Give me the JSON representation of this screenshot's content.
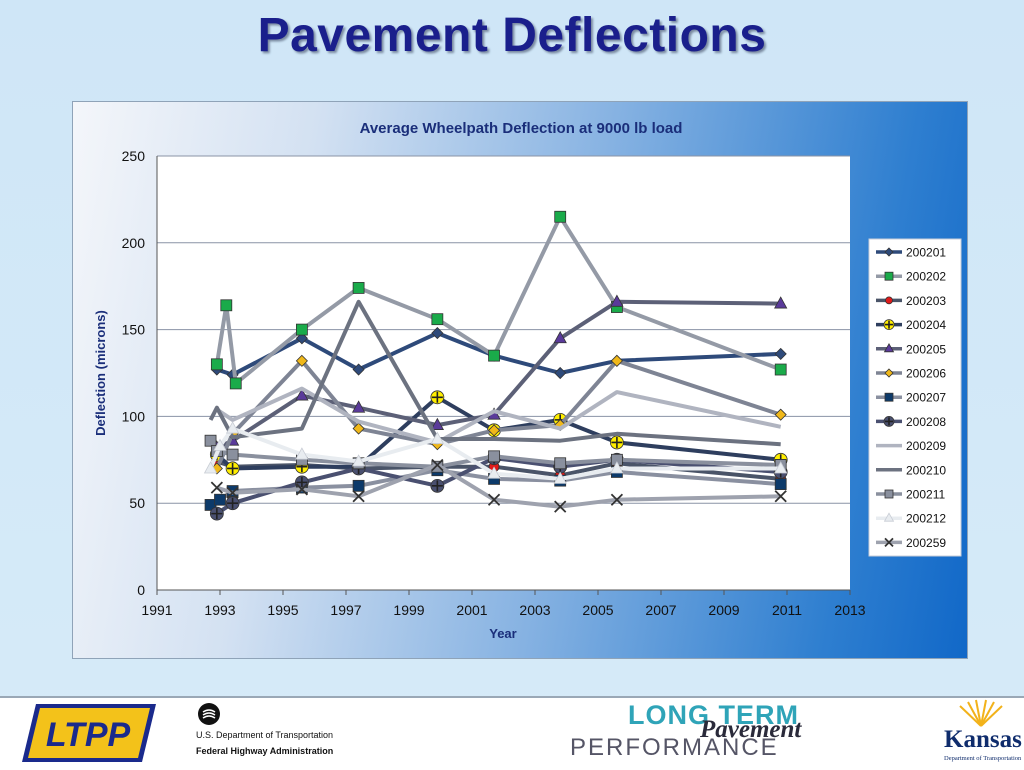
{
  "slide": {
    "title": "Pavement Deflections"
  },
  "footer": {
    "ltpp_logo": "LTPP",
    "dot_line1": "U.S. Department of Transportation",
    "dot_line2": "Federal Highway Administration",
    "lt_line1": "LONG TERM",
    "lt_line2": "Pavement",
    "lt_line3": "PERFORMANCE",
    "kansas_name": "Kansas",
    "kansas_sub": "Department of Transportation"
  },
  "chart_data": {
    "type": "line",
    "title": "Average Wheelpath Deflection at 9000 lb load",
    "xlabel": "Year",
    "ylabel": "Deflection (microns)",
    "xlim": [
      1991,
      2013
    ],
    "ylim": [
      0,
      250
    ],
    "xticks": [
      "1991",
      "1993",
      "1995",
      "1997",
      "1999",
      "2001",
      "2003",
      "2005",
      "2007",
      "2009",
      "2011",
      "2013"
    ],
    "yticks": [
      "0",
      "50",
      "100",
      "150",
      "200",
      "250"
    ],
    "grid": "horizontal",
    "legend_position": "right",
    "series": [
      {
        "name": "200201",
        "color": "#2e4a7a",
        "marker": "diamond",
        "points": [
          [
            1992.9,
            127
          ],
          [
            1993.4,
            124
          ],
          [
            1995.6,
            145
          ],
          [
            1997.4,
            127
          ],
          [
            1999.9,
            148
          ],
          [
            2001.7,
            135
          ],
          [
            2003.8,
            125
          ],
          [
            2005.6,
            132
          ],
          [
            2010.8,
            136
          ]
        ]
      },
      {
        "name": "200202",
        "color": "#949aa6",
        "marker": "square",
        "markerColor": "#1aab4a",
        "points": [
          [
            1992.9,
            130
          ],
          [
            1993.2,
            164
          ],
          [
            1993.5,
            119
          ],
          [
            1995.6,
            150
          ],
          [
            1997.4,
            174
          ],
          [
            1999.9,
            156
          ],
          [
            2001.7,
            135
          ],
          [
            2003.8,
            215
          ],
          [
            2005.6,
            163
          ],
          [
            2010.8,
            127
          ]
        ]
      },
      {
        "name": "200203",
        "color": "#4a5468",
        "marker": "circle",
        "markerColor": "#e01a1a",
        "points": [
          [
            1992.9,
            74
          ],
          [
            1993.4,
            71
          ],
          [
            1995.6,
            72
          ],
          [
            1997.4,
            70
          ],
          [
            1999.9,
            71
          ],
          [
            2001.7,
            71
          ],
          [
            2003.8,
            66
          ],
          [
            2005.6,
            73
          ],
          [
            2010.8,
            64
          ]
        ]
      },
      {
        "name": "200204",
        "color": "#2e3e5e",
        "marker": "plus",
        "markerColor": "#ffee00",
        "points": [
          [
            1992.9,
            78
          ],
          [
            1993.4,
            70
          ],
          [
            1995.6,
            71
          ],
          [
            1997.4,
            71
          ],
          [
            1999.9,
            111
          ],
          [
            2001.7,
            92
          ],
          [
            2003.8,
            98
          ],
          [
            2005.6,
            85
          ],
          [
            2010.8,
            75
          ]
        ]
      },
      {
        "name": "200205",
        "color": "#5c6077",
        "marker": "triangle",
        "markerColor": "#5a3a9a",
        "points": [
          [
            1992.9,
            82
          ],
          [
            1993.4,
            86
          ],
          [
            1995.6,
            112
          ],
          [
            1997.4,
            105
          ],
          [
            1999.9,
            95
          ],
          [
            2001.7,
            101
          ],
          [
            2003.8,
            145
          ],
          [
            2005.6,
            166
          ],
          [
            2010.8,
            165
          ]
        ]
      },
      {
        "name": "200206",
        "color": "#7e8494",
        "marker": "diamond",
        "markerColor": "#f0b81a",
        "points": [
          [
            1992.9,
            70
          ],
          [
            1993.4,
            90
          ],
          [
            1995.6,
            132
          ],
          [
            1997.4,
            93
          ],
          [
            1999.9,
            84
          ],
          [
            2001.7,
            92
          ],
          [
            2003.8,
            95
          ],
          [
            2005.6,
            132
          ],
          [
            2010.8,
            101
          ]
        ]
      },
      {
        "name": "200207",
        "color": "#8a90a0",
        "marker": "square",
        "markerColor": "#0d3a6a",
        "points": [
          [
            1992.7,
            49
          ],
          [
            1993.0,
            52
          ],
          [
            1993.4,
            57
          ],
          [
            1995.6,
            59
          ],
          [
            1997.4,
            60
          ],
          [
            1999.9,
            69
          ],
          [
            2001.7,
            64
          ],
          [
            2003.8,
            63
          ],
          [
            2005.6,
            68
          ],
          [
            2010.8,
            61
          ]
        ]
      },
      {
        "name": "200208",
        "color": "#4a5070",
        "marker": "plus",
        "points": [
          [
            1992.9,
            44
          ],
          [
            1993.4,
            50
          ],
          [
            1995.6,
            62
          ],
          [
            1997.4,
            70
          ],
          [
            1999.9,
            60
          ],
          [
            2001.7,
            76
          ],
          [
            2003.8,
            71
          ],
          [
            2005.6,
            75
          ],
          [
            2010.8,
            68
          ]
        ]
      },
      {
        "name": "200209",
        "color": "#b0b4c0",
        "marker": "none",
        "points": [
          [
            1992.9,
            104
          ],
          [
            1993.4,
            98
          ],
          [
            1995.6,
            116
          ],
          [
            1997.4,
            97
          ],
          [
            1999.9,
            85
          ],
          [
            2001.7,
            103
          ],
          [
            2003.8,
            93
          ],
          [
            2005.6,
            114
          ],
          [
            2010.8,
            94
          ]
        ]
      },
      {
        "name": "200210",
        "color": "#6c7280",
        "marker": "none",
        "points": [
          [
            1992.7,
            98
          ],
          [
            1992.9,
            105
          ],
          [
            1993.4,
            88
          ],
          [
            1995.6,
            93
          ],
          [
            1997.4,
            166
          ],
          [
            1999.9,
            87
          ],
          [
            2001.7,
            87
          ],
          [
            2003.8,
            86
          ],
          [
            2005.6,
            90
          ],
          [
            2010.8,
            84
          ]
        ]
      },
      {
        "name": "200211",
        "color": "#8a909e",
        "marker": "square",
        "points": [
          [
            1992.7,
            86
          ],
          [
            1992.9,
            80
          ],
          [
            1993.4,
            78
          ],
          [
            1995.6,
            75
          ],
          [
            1997.4,
            73
          ],
          [
            1999.9,
            71
          ],
          [
            2001.7,
            77
          ],
          [
            2003.8,
            73
          ],
          [
            2005.6,
            75
          ],
          [
            2010.8,
            72
          ]
        ]
      },
      {
        "name": "200212",
        "color": "#e8ecf0",
        "marker": "triangle",
        "points": [
          [
            1992.7,
            70
          ],
          [
            1993.0,
            83
          ],
          [
            1993.4,
            93
          ],
          [
            1995.6,
            78
          ],
          [
            1997.4,
            74
          ],
          [
            1999.9,
            87
          ],
          [
            2001.7,
            67
          ],
          [
            2003.8,
            64
          ],
          [
            2005.6,
            70
          ],
          [
            2010.8,
            70
          ]
        ]
      },
      {
        "name": "200259",
        "color": "#9ea2ae",
        "marker": "cross",
        "points": [
          [
            1992.9,
            59
          ],
          [
            1993.4,
            56
          ],
          [
            1995.6,
            58
          ],
          [
            1997.4,
            54
          ],
          [
            1999.9,
            72
          ],
          [
            2001.7,
            52
          ],
          [
            2003.8,
            48
          ],
          [
            2005.6,
            52
          ],
          [
            2010.8,
            54
          ]
        ]
      }
    ]
  }
}
